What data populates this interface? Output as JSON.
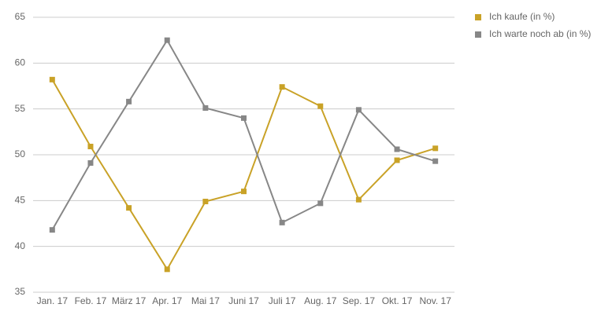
{
  "chart_data": {
    "type": "line",
    "categories": [
      "Jan. 17",
      "Feb. 17",
      "März 17",
      "Apr. 17",
      "Mai 17",
      "Juni 17",
      "Juli 17",
      "Aug. 17",
      "Sep. 17",
      "Okt. 17",
      "Nov. 17"
    ],
    "series": [
      {
        "name": "Ich kaufe (in %)",
        "color": "#c9a227",
        "values": [
          58.2,
          50.9,
          44.2,
          37.5,
          44.9,
          46.0,
          57.4,
          55.3,
          45.1,
          49.4,
          50.7
        ]
      },
      {
        "name": "Ich warte noch ab (in %)",
        "color": "#878787",
        "values": [
          41.8,
          49.1,
          55.8,
          62.5,
          55.1,
          54.0,
          42.6,
          44.7,
          54.9,
          50.6,
          49.3
        ]
      }
    ],
    "ylim": [
      35,
      65
    ],
    "yticks": [
      35,
      40,
      45,
      50,
      55,
      60,
      65
    ],
    "grid": true,
    "legend": "right"
  }
}
